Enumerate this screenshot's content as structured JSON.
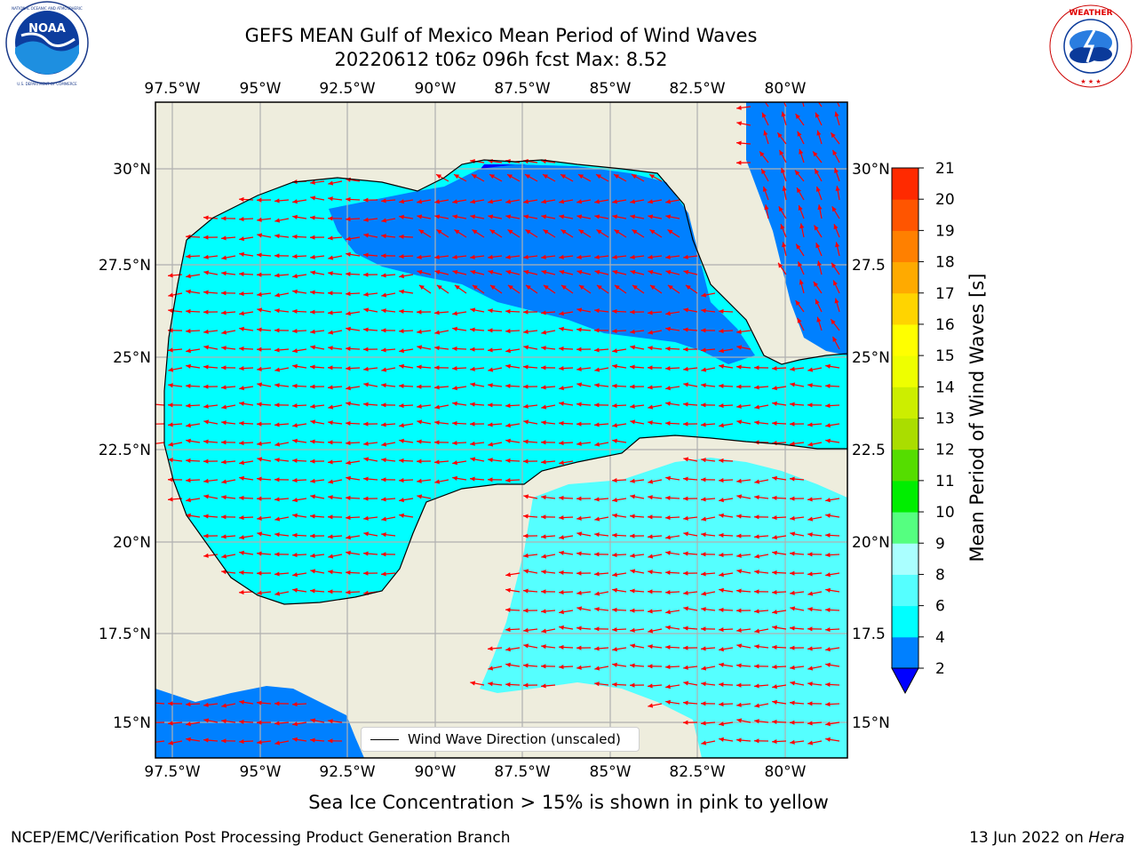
{
  "header": {
    "title_line1": "GEFS MEAN Gulf of Mexico Mean Period of Wind Waves",
    "title_line2": "20220612 t06z 096h fcst   Max: 8.52"
  },
  "logos": {
    "left": {
      "name": "NOAA",
      "ring_text": "NATIONAL OCEANIC AND ATMOSPHERIC ADMINISTRATION",
      "bottom_text": "U.S. DEPARTMENT OF COMMERCE"
    },
    "right": {
      "ring_text": "NATIONAL WEATHER SERVICE"
    }
  },
  "map": {
    "lon_labels_top": [
      "97.5°W",
      "95°W",
      "92.5°W",
      "90°W",
      "87.5°W",
      "85°W",
      "82.5°W",
      "80°W"
    ],
    "lon_labels_bottom": [
      "97.5°W",
      "95°W",
      "92.5°W",
      "90°W",
      "87.5°W",
      "85°W",
      "82.5°W",
      "80°W"
    ],
    "lat_labels_left": [
      "30°N",
      "27.5°N",
      "25°N",
      "22.5°N",
      "20°N",
      "17.5°N",
      "15°N"
    ],
    "lat_labels_right": [
      "30°N",
      "27.5",
      "25°N",
      "22.5",
      "20°N",
      "17.5",
      "15°N"
    ],
    "legend_label": "Wind Wave Direction (unscaled)",
    "colors": {
      "land": "#eeeddd",
      "ocean_light": "#aaffff",
      "ocean_mid": "#55ffff",
      "ocean_cyan": "#00ffff",
      "ocean_blue": "#0080ff",
      "ocean_deep": "#0000ff",
      "arrow": "#ff0000",
      "grid": "#b0b0b0"
    }
  },
  "colorbar": {
    "label": "Mean Period of Wind Waves [s]",
    "ticks": [
      "2",
      "4",
      "6",
      "8",
      "9",
      "10",
      "11",
      "12",
      "13",
      "14",
      "15",
      "16",
      "17",
      "18",
      "19",
      "20",
      "21"
    ],
    "colors": [
      "#0080ff",
      "#00ffff",
      "#55ffff",
      "#aaffff",
      "#55ff80",
      "#00ee00",
      "#55dd00",
      "#aadd00",
      "#ccee00",
      "#eeff00",
      "#ffff00",
      "#ffd400",
      "#ffaa00",
      "#ff8000",
      "#ff5500",
      "#ff2a00"
    ],
    "extend_color": "#0000ff"
  },
  "notes": {
    "sea_ice": "Sea Ice Concentration > 15% is shown in pink to yellow"
  },
  "footer": {
    "branch": "NCEP/EMC/Verification Post Processing Product Generation Branch",
    "date": "13 Jun 2022 on ",
    "host": "Hera"
  }
}
